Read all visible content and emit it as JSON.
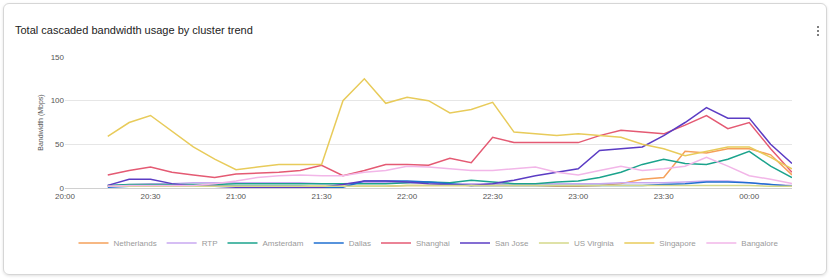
{
  "chart_data": {
    "type": "line",
    "title": "Total cascaded bandwidth usage by cluster trend",
    "y_label": "Bandwidth (Mbps)",
    "categories": [
      "20:00",
      null,
      null,
      null,
      "20:30",
      null,
      null,
      null,
      "21:00",
      null,
      null,
      null,
      "21:30",
      null,
      null,
      null,
      "22:00",
      null,
      null,
      null,
      "22:30",
      null,
      null,
      null,
      "23:00",
      null,
      null,
      null,
      "23:30",
      null,
      null,
      null,
      "00:00",
      null,
      null
    ],
    "ylim": [
      0,
      150
    ],
    "yticks": [
      0,
      50,
      100,
      150
    ],
    "grid": true,
    "legend": "bottom",
    "series": [
      {
        "name": "Netherlands",
        "color": "#f5a05a",
        "values": [
          null,
          null,
          2,
          2,
          2,
          2,
          2,
          2,
          2,
          2,
          2,
          2,
          2,
          2,
          2,
          2,
          3,
          3,
          3,
          3,
          3,
          3,
          3,
          2,
          2,
          3,
          5,
          10,
          12,
          42,
          40,
          45,
          45,
          38,
          15
        ]
      },
      {
        "name": "RTP",
        "color": "#c8a8f0",
        "values": [
          null,
          null,
          3,
          4,
          5,
          5,
          6,
          6,
          6,
          6,
          6,
          6,
          5,
          5,
          6,
          6,
          6,
          6,
          5,
          5,
          5,
          5,
          5,
          5,
          5,
          5,
          6,
          6,
          6,
          7,
          8,
          8,
          6,
          4,
          3
        ]
      },
      {
        "name": "Amsterdam",
        "color": "#1ba38c",
        "values": [
          null,
          null,
          3,
          4,
          4,
          4,
          4,
          4,
          5,
          5,
          5,
          5,
          5,
          5,
          5,
          5,
          6,
          7,
          6,
          9,
          7,
          5,
          5,
          7,
          8,
          12,
          18,
          27,
          33,
          28,
          27,
          33,
          42,
          25,
          12
        ]
      },
      {
        "name": "Dallas",
        "color": "#1f6fd0",
        "values": [
          null,
          null,
          1,
          2,
          2,
          2,
          2,
          2,
          2,
          2,
          2,
          2,
          1,
          1,
          8,
          8,
          8,
          7,
          5,
          3,
          3,
          3,
          3,
          3,
          3,
          3,
          3,
          3,
          4,
          5,
          7,
          7,
          6,
          4,
          2
        ]
      },
      {
        "name": "Shanghai",
        "color": "#e45a73",
        "values": [
          null,
          null,
          15,
          20,
          24,
          18,
          15,
          12,
          16,
          17,
          18,
          20,
          26,
          14,
          20,
          27,
          27,
          26,
          34,
          29,
          58,
          52,
          52,
          52,
          52,
          60,
          66,
          64,
          62,
          72,
          83,
          68,
          75,
          45,
          18
        ]
      },
      {
        "name": "San Jose",
        "color": "#5b3cc4",
        "values": [
          null,
          null,
          3,
          10,
          10,
          5,
          2,
          2,
          1,
          1,
          1,
          1,
          1,
          4,
          8,
          8,
          7,
          5,
          4,
          3,
          5,
          9,
          14,
          18,
          22,
          43,
          45,
          47,
          60,
          75,
          92,
          80,
          80,
          50,
          28
        ]
      },
      {
        "name": "US Virginia",
        "color": "#d4d98a",
        "values": [
          null,
          null,
          2,
          2,
          2,
          2,
          2,
          2,
          2,
          2,
          2,
          2,
          2,
          2,
          2,
          2,
          3,
          3,
          3,
          3,
          3,
          3,
          3,
          3,
          3,
          3,
          3,
          3,
          3,
          3,
          3,
          3,
          3,
          2,
          2
        ]
      },
      {
        "name": "Singapore",
        "color": "#e8cb5a",
        "values": [
          null,
          null,
          59,
          75,
          83,
          65,
          47,
          33,
          21,
          24,
          27,
          27,
          27,
          100,
          125,
          97,
          104,
          100,
          86,
          90,
          98,
          64,
          62,
          60,
          62,
          60,
          58,
          50,
          45,
          37,
          42,
          47,
          47,
          35,
          22
        ]
      },
      {
        "name": "Bangalore",
        "color": "#f2b6e8",
        "values": [
          null,
          null,
          2,
          3,
          3,
          3,
          3,
          5,
          8,
          12,
          14,
          15,
          14,
          14,
          18,
          20,
          25,
          24,
          22,
          20,
          20,
          22,
          24,
          18,
          15,
          20,
          25,
          20,
          22,
          25,
          35,
          25,
          14,
          10,
          5
        ]
      }
    ]
  }
}
